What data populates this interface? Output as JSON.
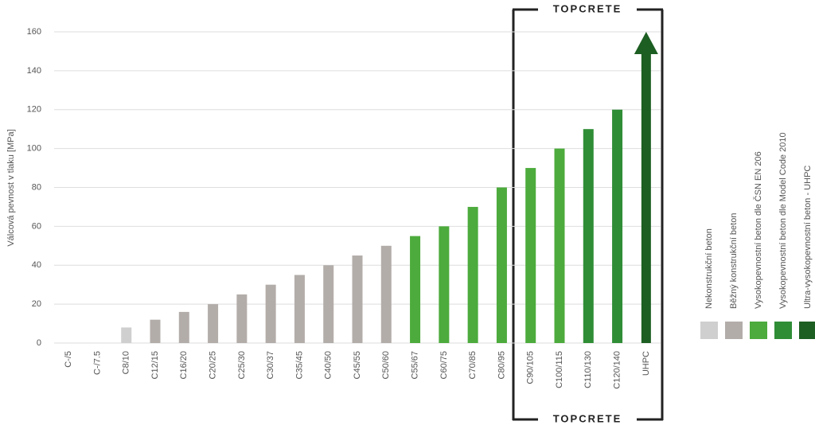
{
  "chart_data": {
    "type": "bar",
    "y_label": "Válcová pevnost v tlaku [MPa]",
    "annotations": [
      "TOPCRETE",
      "TOPCRETE"
    ],
    "categories": [
      "C-/5",
      "C-/7.5",
      "C8/10",
      "C12/15",
      "C16/20",
      "C20/25",
      "C25/30",
      "C30/37",
      "C35/45",
      "C40/50",
      "C45/55",
      "C50/60",
      "C55/67",
      "C60/75",
      "C70/85",
      "C80/95",
      "C90/105",
      "C100/115",
      "C110/130",
      "C120/140",
      "UHPC"
    ],
    "series": [
      {
        "name": "Nekonstrukční beton",
        "color": "#cfcfcf",
        "values": [
          null,
          null,
          8,
          null,
          null,
          null,
          null,
          null,
          null,
          null,
          null,
          null,
          null,
          null,
          null,
          null,
          null,
          null,
          null,
          null,
          null
        ]
      },
      {
        "name": "Běžný konstrukční beton",
        "color": "#b3adaa",
        "values": [
          null,
          null,
          null,
          12,
          16,
          20,
          25,
          30,
          35,
          40,
          45,
          50,
          null,
          null,
          null,
          null,
          null,
          null,
          null,
          null,
          null
        ]
      },
      {
        "name": "Vysokopevnostní beton dle ČSN EN 206",
        "color": "#4cab3c",
        "values": [
          null,
          null,
          null,
          null,
          null,
          null,
          null,
          null,
          null,
          null,
          null,
          null,
          55,
          60,
          70,
          80,
          90,
          100,
          null,
          null,
          null
        ]
      },
      {
        "name": "Vysokopevnostní beton dle Model Code 2010",
        "color": "#2f8d36",
        "values": [
          null,
          null,
          null,
          null,
          null,
          null,
          null,
          null,
          null,
          null,
          null,
          null,
          null,
          null,
          null,
          null,
          null,
          null,
          110,
          120,
          null
        ]
      },
      {
        "name": "Ultra-vysokopevnostní beton - UHPC",
        "color": "#1d5e22",
        "values": [
          null,
          null,
          null,
          null,
          null,
          null,
          null,
          null,
          null,
          null,
          null,
          null,
          null,
          null,
          null,
          null,
          null,
          null,
          null,
          null,
          160
        ]
      }
    ],
    "ylim": [
      0,
      160
    ],
    "yticks": [
      0,
      20,
      40,
      60,
      80,
      100,
      120,
      140,
      160
    ],
    "grid": true
  }
}
